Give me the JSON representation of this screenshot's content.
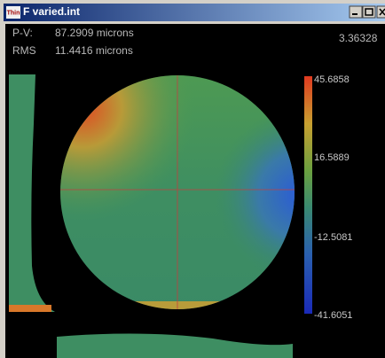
{
  "window": {
    "icon": "Thin",
    "title": "F varied.int"
  },
  "stats": {
    "pv_label": "P-V:",
    "pv_value": "87.2909 microns",
    "rms_label": "RMS",
    "rms_value": "11.4416 microns",
    "corner_value": "3.36328"
  },
  "color_scale": {
    "labels": [
      "45.6858",
      "16.5889",
      "-12.5081",
      "-41.6051"
    ]
  }
}
